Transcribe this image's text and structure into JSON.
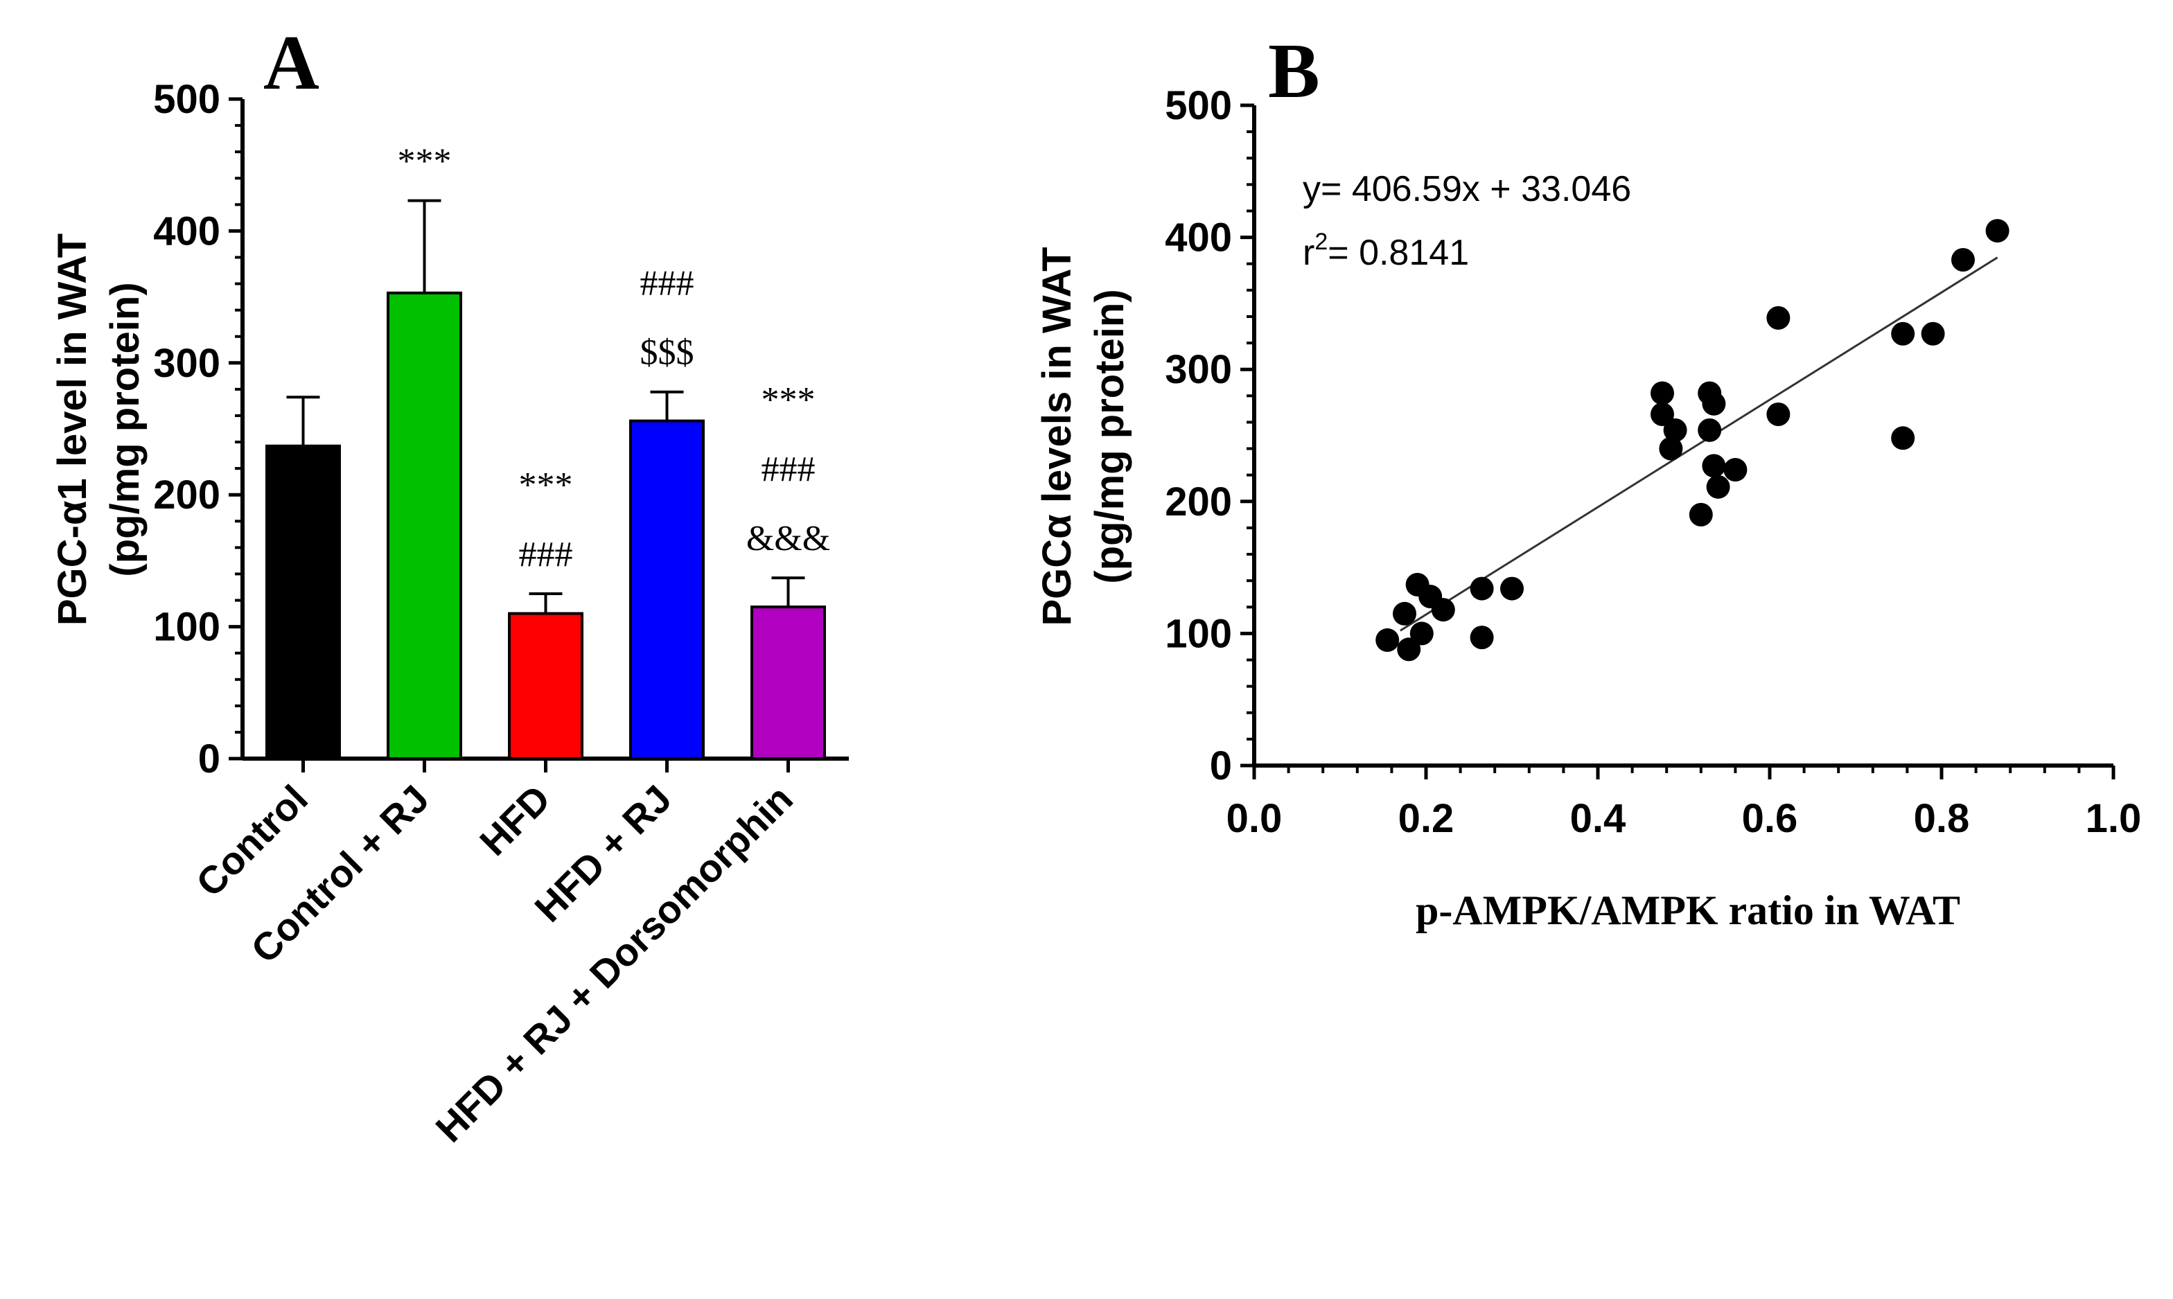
{
  "chart_data": [
    {
      "panel_label": "A",
      "type": "bar",
      "ylabel_line1": "PGC-α1 level in WAT",
      "ylabel_line2": "(pg/mg protein)",
      "ylim": [
        0,
        500
      ],
      "yticks": [
        "0",
        "100",
        "200",
        "300",
        "400",
        "500"
      ],
      "categories": [
        "Control",
        "Control + RJ",
        "HFD",
        "HFD + RJ",
        "HFD + RJ + Dorsomorphin"
      ],
      "values": [
        237,
        353,
        110,
        256,
        115
      ],
      "errors": [
        37,
        70,
        15,
        22,
        22
      ],
      "colors": [
        "#000000",
        "#00c000",
        "#ff0000",
        "#0000ff",
        "#b000c0"
      ],
      "annotations": [
        [],
        [
          "***"
        ],
        [
          "***",
          "###"
        ],
        [
          "###",
          "$$$"
        ],
        [
          "***",
          "###",
          "&&&"
        ]
      ]
    },
    {
      "panel_label": "B",
      "type": "scatter",
      "xlabel": "p-AMPK/AMPK ratio in  WAT",
      "ylabel_line1": "PGCα levels in  WAT",
      "ylabel_line2": "(pg/mg protein)",
      "xlim": [
        0,
        1
      ],
      "ylim": [
        0,
        500
      ],
      "xticks": [
        "0.0",
        "0.2",
        "0.4",
        "0.6",
        "0.8",
        "1.0"
      ],
      "yticks": [
        "0",
        "100",
        "200",
        "300",
        "400",
        "500"
      ],
      "equation": "y= 406.59x + 33.046",
      "r2_prefix": "r",
      "r2_sup": "2",
      "r2_value": "= 0.8141",
      "fit": {
        "slope": 406.59,
        "intercept": 33.046,
        "x_start": 0.17,
        "x_end": 0.865
      },
      "points": [
        {
          "x": 0.155,
          "y": 95
        },
        {
          "x": 0.175,
          "y": 115
        },
        {
          "x": 0.18,
          "y": 88
        },
        {
          "x": 0.19,
          "y": 137
        },
        {
          "x": 0.195,
          "y": 100
        },
        {
          "x": 0.205,
          "y": 128
        },
        {
          "x": 0.22,
          "y": 118
        },
        {
          "x": 0.265,
          "y": 134
        },
        {
          "x": 0.265,
          "y": 97
        },
        {
          "x": 0.3,
          "y": 134
        },
        {
          "x": 0.475,
          "y": 282
        },
        {
          "x": 0.475,
          "y": 266
        },
        {
          "x": 0.485,
          "y": 240
        },
        {
          "x": 0.49,
          "y": 254
        },
        {
          "x": 0.52,
          "y": 190
        },
        {
          "x": 0.53,
          "y": 282
        },
        {
          "x": 0.53,
          "y": 254
        },
        {
          "x": 0.535,
          "y": 227
        },
        {
          "x": 0.535,
          "y": 274
        },
        {
          "x": 0.54,
          "y": 211
        },
        {
          "x": 0.56,
          "y": 224
        },
        {
          "x": 0.61,
          "y": 339
        },
        {
          "x": 0.61,
          "y": 266
        },
        {
          "x": 0.755,
          "y": 327
        },
        {
          "x": 0.755,
          "y": 248
        },
        {
          "x": 0.79,
          "y": 327
        },
        {
          "x": 0.825,
          "y": 383
        },
        {
          "x": 0.865,
          "y": 405
        }
      ]
    }
  ]
}
